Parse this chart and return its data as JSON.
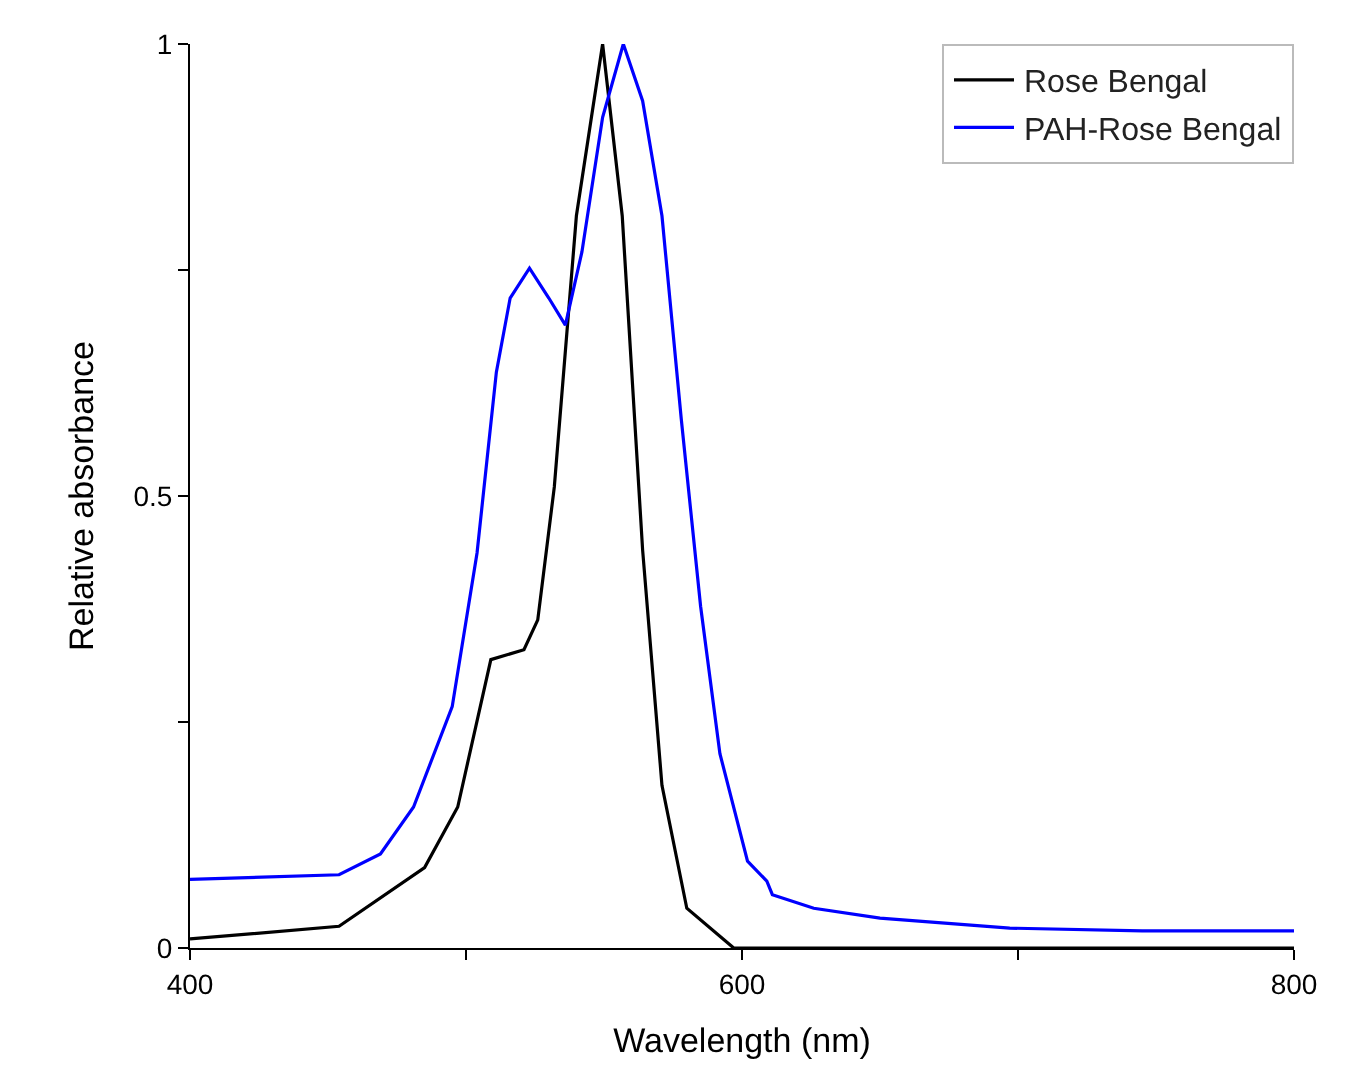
{
  "chart_data": {
    "type": "line",
    "xlabel": "Wavelength (nm)",
    "ylabel": "Relative absorbance",
    "xlim": [
      400,
      800
    ],
    "ylim": [
      0,
      1
    ],
    "xticks": [
      400,
      {
        "value": 500,
        "label": null
      },
      600,
      {
        "value": 700,
        "label": null
      },
      800
    ],
    "yticks": [
      0,
      {
        "value": 0.25,
        "label": null
      },
      0.5,
      {
        "value": 0.75,
        "label": null
      },
      1
    ],
    "legend": "top right",
    "marker": "none",
    "line_style": "solid",
    "series": [
      {
        "name": "Rose Bengal",
        "color": "#000000",
        "x": [
          400,
          454,
          485,
          497,
          509,
          521,
          526,
          532,
          540,
          549.5,
          556.6,
          564,
          571,
          580,
          597,
          620,
          700,
          800
        ],
        "values": [
          0.01,
          0.024,
          0.089,
          0.156,
          0.319,
          0.33,
          0.363,
          0.51,
          0.81,
          1.0,
          0.81,
          0.44,
          0.18,
          0.044,
          0.0,
          0.0,
          0.0,
          0.0
        ]
      },
      {
        "name": "PAH-Rose Bengal",
        "color": "#0000ff",
        "x": [
          400,
          454,
          469,
          481,
          495,
          504,
          511,
          516,
          523,
          530,
          536,
          542,
          549.5,
          557,
          564,
          571,
          578,
          585,
          592,
          602,
          609,
          611,
          626,
          650,
          697,
          745,
          800
        ],
        "values": [
          0.076,
          0.081,
          0.104,
          0.156,
          0.267,
          0.437,
          0.637,
          0.719,
          0.752,
          0.719,
          0.689,
          0.77,
          0.919,
          1.0,
          0.937,
          0.81,
          0.585,
          0.378,
          0.215,
          0.096,
          0.074,
          0.059,
          0.044,
          0.033,
          0.022,
          0.019,
          0.019
        ]
      }
    ]
  }
}
